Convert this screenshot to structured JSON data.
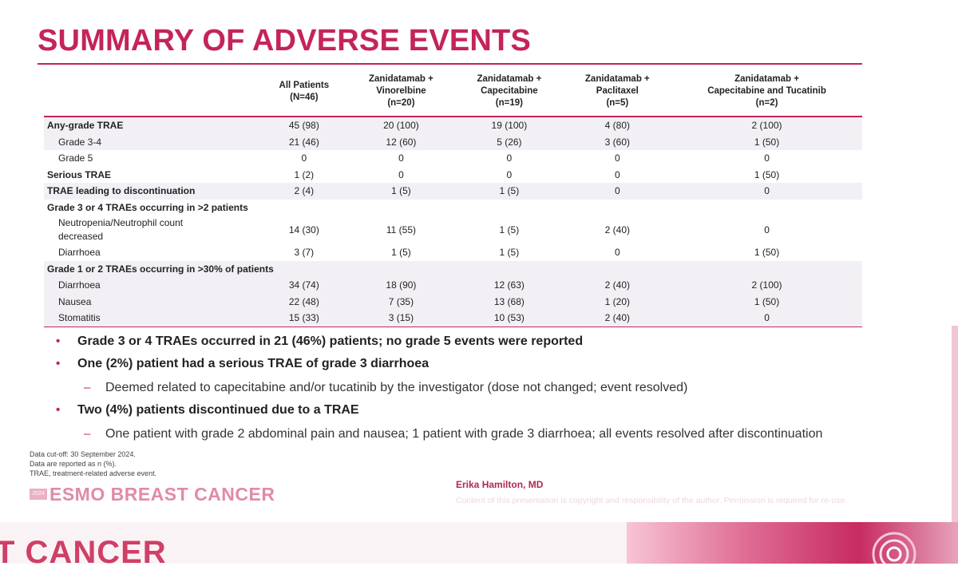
{
  "slide": {
    "title": "SUMMARY OF ADVERSE EVENTS"
  },
  "table": {
    "columns": [
      {
        "line1": "",
        "line2": "",
        "line3": ""
      },
      {
        "line1": "All Patients",
        "line2": "(N=46)",
        "line3": ""
      },
      {
        "line1": "Zanidatamab +",
        "line2": "Vinorelbine",
        "line3": "(n=20)"
      },
      {
        "line1": "Zanidatamab +",
        "line2": "Capecitabine",
        "line3": "(n=19)"
      },
      {
        "line1": "Zanidatamab +",
        "line2": "Paclitaxel",
        "line3": "(n=5)"
      },
      {
        "line1": "Zanidatamab +",
        "line2": "Capecitabine and Tucatinib",
        "line3": "(n=2)"
      }
    ],
    "rows": [
      {
        "label": "Any-grade TRAE",
        "values": [
          "45 (98)",
          "20 (100)",
          "19 (100)",
          "4 (80)",
          "2 (100)"
        ]
      },
      {
        "label": "Grade 3-4",
        "values": [
          "21 (46)",
          "12 (60)",
          "5 (26)",
          "3 (60)",
          "1 (50)"
        ]
      },
      {
        "label": "Grade 5",
        "values": [
          "0",
          "0",
          "0",
          "0",
          "0"
        ]
      },
      {
        "label": "Serious TRAE",
        "values": [
          "1 (2)",
          "0",
          "0",
          "0",
          "1 (50)"
        ]
      },
      {
        "label": "TRAE leading to discontinuation",
        "values": [
          "2 (4)",
          "1 (5)",
          "1 (5)",
          "0",
          "0"
        ]
      },
      {
        "label": "Grade 3 or 4 TRAEs occurring in >2 patients",
        "values": [
          "",
          "",
          "",
          "",
          ""
        ]
      },
      {
        "label1": "Neutropenia/Neutrophil count",
        "label2": "decreased",
        "values": [
          "14 (30)",
          "11 (55)",
          "1 (5)",
          "2 (40)",
          "0"
        ]
      },
      {
        "label": "Diarrhoea",
        "values": [
          "3 (7)",
          "1 (5)",
          "1 (5)",
          "0",
          "1 (50)"
        ]
      },
      {
        "label": "Grade 1 or 2 TRAEs occurring in >30% of patients",
        "values": [
          "",
          "",
          "",
          "",
          ""
        ]
      },
      {
        "label": "Diarrhoea",
        "values": [
          "34 (74)",
          "18 (90)",
          "12 (63)",
          "2 (40)",
          "2 (100)"
        ]
      },
      {
        "label": "Nausea",
        "values": [
          "22 (48)",
          "7 (35)",
          "13 (68)",
          "1 (20)",
          "1 (50)"
        ]
      },
      {
        "label": "Stomatitis",
        "values": [
          "15 (33)",
          "3 (15)",
          "10 (53)",
          "2 (40)",
          "0"
        ]
      }
    ]
  },
  "bullets": {
    "b1": "Grade 3 or 4 TRAEs occurred in 21 (46%) patients; no grade 5 events were reported",
    "b2": "One (2%) patient had a serious TRAE of grade 3 diarrhoea",
    "b2_sub": "Deemed related to capecitabine and/or tucatinib by the investigator (dose not changed; event resolved)",
    "b3": "Two (4%) patients discontinued due to a TRAE",
    "b3_sub": "One patient with grade 2 abdominal pain and nausea; 1 patient with grade 3 diarrhoea; all events resolved after discontinuation",
    "bullet_symbol": "•",
    "sub_symbol": "–"
  },
  "footnotes": {
    "line1": "Data cut-off: 30 September 2024.",
    "line2": "Data are reported as n (%).",
    "line3": "TRAE, treatment-related adverse event."
  },
  "branding": {
    "esmo_badge": "2024",
    "esmo_name": "ESMO BREAST CANCER",
    "presenter": "Erika Hamilton, MD",
    "copyright": "Content of this presentation is copyright and responsibility of the author. Permission is required for re-use.",
    "bottom_fragment": "T CANCER"
  },
  "colors": {
    "accent": "#c4245a",
    "row_shade": "#f3f0f5",
    "presenter": "#b0294f"
  }
}
